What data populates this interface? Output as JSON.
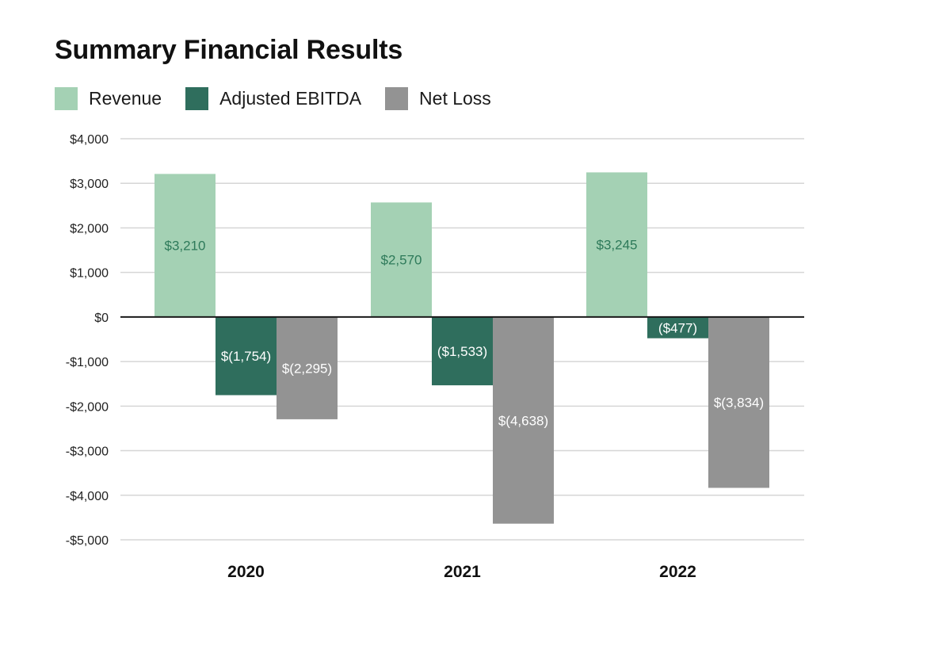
{
  "chart_data": {
    "type": "bar",
    "title": "Summary Financial Results",
    "categories": [
      "2020",
      "2021",
      "2022"
    ],
    "series": [
      {
        "name": "Revenue",
        "color": "#a4d1b4",
        "values": [
          3210,
          2570,
          3245
        ],
        "labels": [
          "$3,210",
          "$2,570",
          "$3,245"
        ],
        "label_color": "#2e7a5a"
      },
      {
        "name": "Adjusted EBITDA",
        "color": "#2f6e5d",
        "values": [
          -1754,
          -1533,
          -477
        ],
        "labels": [
          "$(1,754)",
          "($1,533)",
          "($477)"
        ],
        "label_color": "#ffffff"
      },
      {
        "name": "Net Loss",
        "color": "#939393",
        "values": [
          -2295,
          -4638,
          -3834
        ],
        "labels": [
          "$(2,295)",
          "$(4,638)",
          "$(3,834)"
        ],
        "label_color": "#ffffff"
      }
    ],
    "ylim": [
      -5000,
      4000
    ],
    "yticks": [
      4000,
      3000,
      2000,
      1000,
      0,
      -1000,
      -2000,
      -3000,
      -4000,
      -5000
    ],
    "ytick_labels": [
      "$4,000",
      "$3,000",
      "$2,000",
      "$1,000",
      "$0",
      "-$1,000",
      "-$2,000",
      "-$3,000",
      "-$4,000",
      "-$5,000"
    ],
    "grid": true,
    "legend": "top-left",
    "xlabel": "",
    "ylabel": ""
  }
}
